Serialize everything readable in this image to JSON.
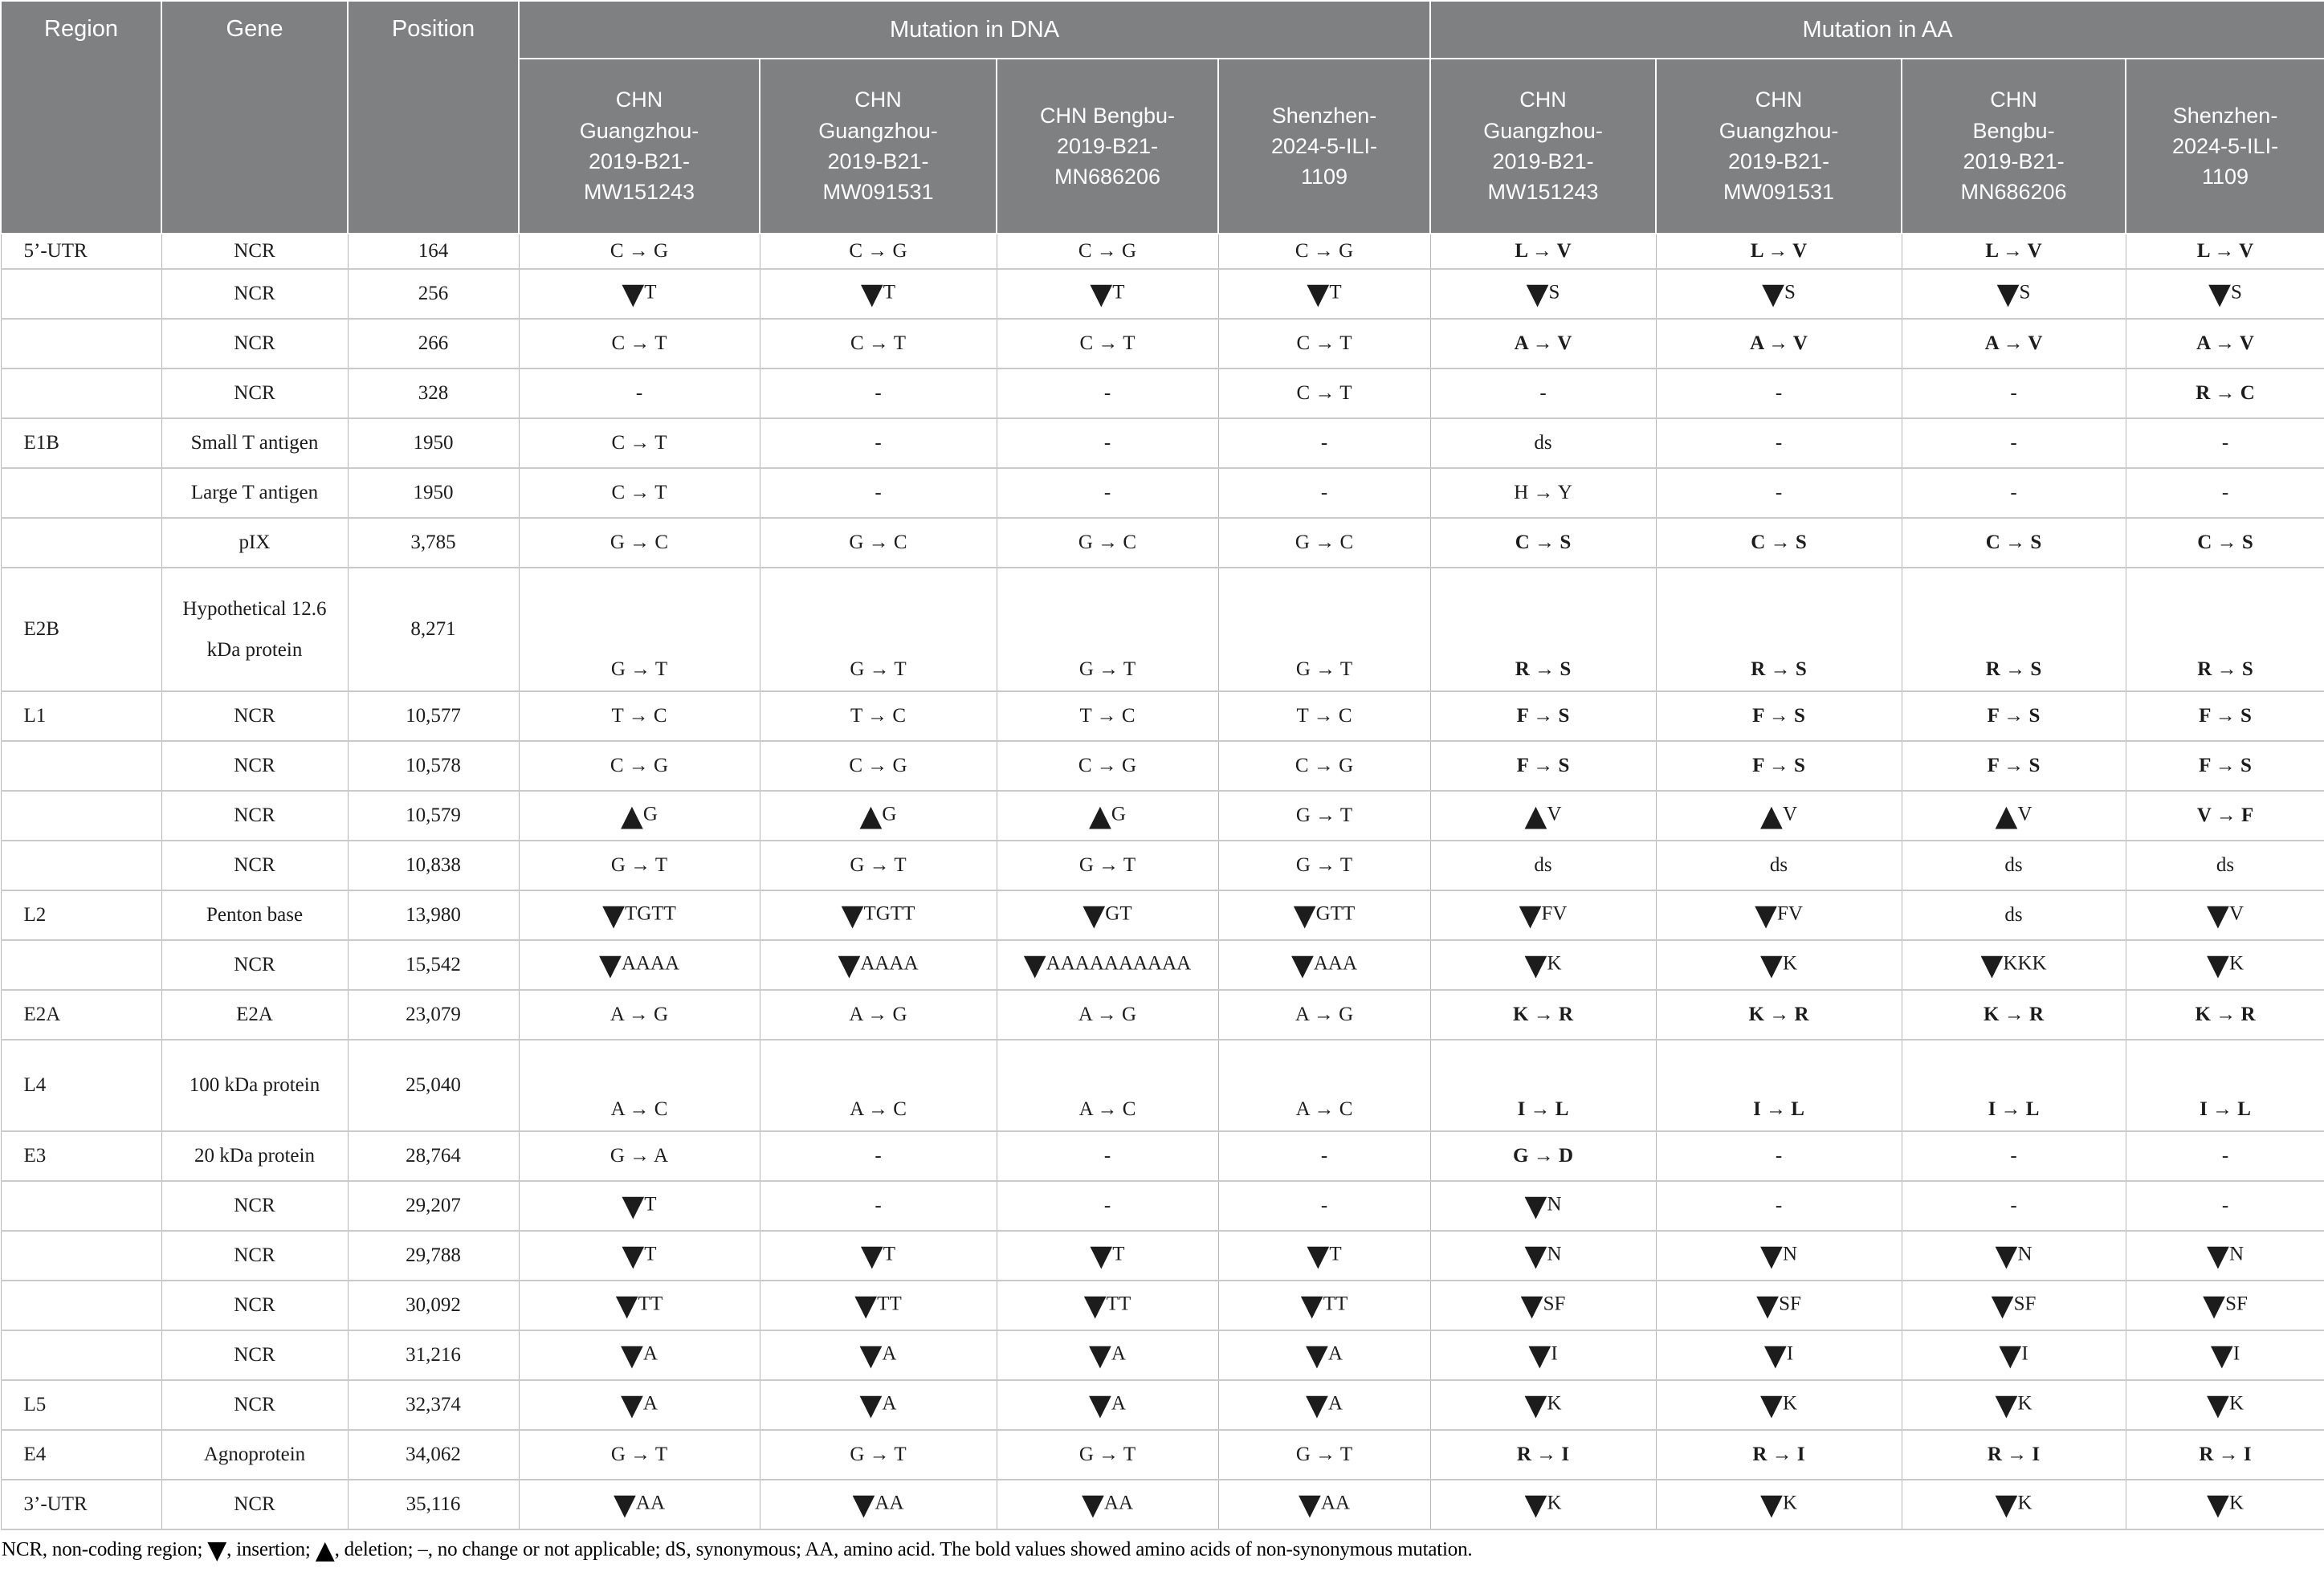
{
  "header": {
    "region": "Region",
    "gene": "Gene",
    "position": "Position",
    "groups": [
      {
        "label": "Mutation in DNA",
        "strains": [
          [
            "CHN",
            "Guangzhou-",
            "2019-B21-",
            "MW151243"
          ],
          [
            "CHN",
            "Guangzhou-",
            "2019-B21-",
            "MW091531"
          ],
          [
            "CHN Bengbu-",
            "2019-B21-",
            "MN686206"
          ],
          [
            "Shenzhen-",
            "2024-5-ILI-",
            "1109"
          ]
        ]
      },
      {
        "label": "Mutation in AA",
        "strains": [
          [
            "CHN",
            "Guangzhou-",
            "2019-B21-",
            "MW151243"
          ],
          [
            "CHN",
            "Guangzhou-",
            "2019-B21-",
            "MW091531"
          ],
          [
            "CHN",
            "Bengbu-",
            "2019-B21-",
            "MN686206"
          ],
          [
            "Shenzhen-",
            "2024-5-ILI-",
            "1109"
          ]
        ]
      }
    ]
  },
  "rows": [
    {
      "region": "5’-UTR",
      "gene": "NCR",
      "position": "164",
      "dna": [
        "C → G",
        "C → G",
        "C → G",
        "C → G"
      ],
      "aa": [
        "L → V",
        "L → V",
        "L → V",
        "L → V"
      ],
      "aa_bold": [
        1,
        1,
        1,
        1
      ]
    },
    {
      "region": "",
      "gene": "NCR",
      "position": "256",
      "dna": [
        "▼T",
        "▼T",
        "▼T",
        "▼T"
      ],
      "aa": [
        "▼S",
        "▼S",
        "▼S",
        "▼S"
      ],
      "aa_bold": [
        0,
        0,
        0,
        0
      ]
    },
    {
      "region": "",
      "gene": "NCR",
      "position": "266",
      "dna": [
        "C → T",
        "C → T",
        "C → T",
        "C → T"
      ],
      "aa": [
        "A → V",
        "A → V",
        "A → V",
        "A → V"
      ],
      "aa_bold": [
        1,
        1,
        1,
        1
      ]
    },
    {
      "region": "",
      "gene": "NCR",
      "position": "328",
      "dna": [
        "-",
        "-",
        "-",
        "C → T"
      ],
      "aa": [
        "-",
        "-",
        "-",
        "R → C"
      ],
      "aa_bold": [
        0,
        0,
        0,
        1
      ]
    },
    {
      "region": "E1B",
      "gene": "Small T antigen",
      "position": "1950",
      "dna": [
        "C → T",
        "-",
        "-",
        "-"
      ],
      "aa": [
        "ds",
        "-",
        "-",
        "-"
      ],
      "aa_bold": [
        0,
        0,
        0,
        0
      ]
    },
    {
      "region": "",
      "gene": "Large T antigen",
      "position": "1950",
      "dna": [
        "C → T",
        "-",
        "-",
        "-"
      ],
      "aa": [
        "H → Y",
        "-",
        "-",
        "-"
      ],
      "aa_bold": [
        0,
        0,
        0,
        0
      ]
    },
    {
      "region": "",
      "gene": "pIX",
      "position": "3,785",
      "dna": [
        "G → C",
        "G → C",
        "G → C",
        "G → C"
      ],
      "aa": [
        "C → S",
        "C → S",
        "C → S",
        "C → S"
      ],
      "aa_bold": [
        1,
        1,
        1,
        1
      ]
    },
    {
      "region": "E2B",
      "gene": "Hypothetical 12.6 kDa protein",
      "position": "8,271",
      "dna": [
        "G → T",
        "G → T",
        "G → T",
        "G → T"
      ],
      "aa": [
        "R → S",
        "R → S",
        "R → S",
        "R → S"
      ],
      "aa_bold": [
        1,
        1,
        1,
        1
      ]
    },
    {
      "region": "L1",
      "gene": "NCR",
      "position": "10,577",
      "dna": [
        "T → C",
        "T → C",
        "T → C",
        "T → C"
      ],
      "aa": [
        "F → S",
        "F → S",
        "F → S",
        "F → S"
      ],
      "aa_bold": [
        1,
        1,
        1,
        1
      ]
    },
    {
      "region": "",
      "gene": "NCR",
      "position": "10,578",
      "dna": [
        "C → G",
        "C → G",
        "C → G",
        "C → G"
      ],
      "aa": [
        "F → S",
        "F → S",
        "F → S",
        "F → S"
      ],
      "aa_bold": [
        1,
        1,
        1,
        1
      ]
    },
    {
      "region": "",
      "gene": "NCR",
      "position": "10,579",
      "dna": [
        "▲G",
        "▲G",
        "▲G",
        "G → T"
      ],
      "aa": [
        "▲V",
        "▲V",
        "▲V",
        "V → F"
      ],
      "aa_bold": [
        0,
        0,
        0,
        1
      ]
    },
    {
      "region": "",
      "gene": "NCR",
      "position": "10,838",
      "dna": [
        "G → T",
        "G → T",
        "G → T",
        "G → T"
      ],
      "aa": [
        "ds",
        "ds",
        "ds",
        "ds"
      ],
      "aa_bold": [
        0,
        0,
        0,
        0
      ]
    },
    {
      "region": "L2",
      "gene": "Penton base",
      "position": "13,980",
      "dna": [
        "▼TGTT",
        "▼TGTT",
        "▼GT",
        "▼GTT"
      ],
      "aa": [
        "▼FV",
        "▼FV",
        "ds",
        "▼V"
      ],
      "aa_bold": [
        0,
        0,
        0,
        0
      ]
    },
    {
      "region": "",
      "gene": "NCR",
      "position": "15,542",
      "dna": [
        "▼AAAA",
        "▼AAAA",
        "▼AAAAAAAAAA",
        "▼AAA"
      ],
      "aa": [
        "▼K",
        "▼K",
        "▼KKK",
        "▼K"
      ],
      "aa_bold": [
        0,
        0,
        0,
        0
      ]
    },
    {
      "region": "E2A",
      "gene": "E2A",
      "position": "23,079",
      "dna": [
        "A → G",
        "A → G",
        "A → G",
        "A → G"
      ],
      "aa": [
        "K → R",
        "K → R",
        "K → R",
        "K → R"
      ],
      "aa_bold": [
        1,
        1,
        1,
        1
      ]
    },
    {
      "region": "L4",
      "gene": "100 kDa protein",
      "position": "25,040",
      "dna": [
        "A → C",
        "A → C",
        "A → C",
        "A → C"
      ],
      "aa": [
        "I → L",
        "I → L",
        "I → L",
        "I → L"
      ],
      "aa_bold": [
        1,
        1,
        1,
        1
      ]
    },
    {
      "region": "E3",
      "gene": "20 kDa protein",
      "position": "28,764",
      "dna": [
        "G → A",
        "-",
        "-",
        "-"
      ],
      "aa": [
        "G → D",
        "-",
        "-",
        "-"
      ],
      "aa_bold": [
        1,
        0,
        0,
        0
      ]
    },
    {
      "region": "",
      "gene": "NCR",
      "position": "29,207",
      "dna": [
        "▼T",
        "-",
        "-",
        "-"
      ],
      "aa": [
        "▼N",
        "-",
        "-",
        "-"
      ],
      "aa_bold": [
        0,
        0,
        0,
        0
      ]
    },
    {
      "region": "",
      "gene": "NCR",
      "position": "29,788",
      "dna": [
        "▼T",
        "▼T",
        "▼T",
        "▼T"
      ],
      "aa": [
        "▼N",
        "▼N",
        "▼N",
        "▼N"
      ],
      "aa_bold": [
        0,
        0,
        0,
        0
      ]
    },
    {
      "region": "",
      "gene": "NCR",
      "position": "30,092",
      "dna": [
        "▼TT",
        "▼TT",
        "▼TT",
        "▼TT"
      ],
      "aa": [
        "▼SF",
        "▼SF",
        "▼SF",
        "▼SF"
      ],
      "aa_bold": [
        0,
        0,
        0,
        0
      ]
    },
    {
      "region": "",
      "gene": "NCR",
      "position": "31,216",
      "dna": [
        "▼A",
        "▼A",
        "▼A",
        "▼A"
      ],
      "aa": [
        "▼I",
        "▼I",
        "▼I",
        "▼I"
      ],
      "aa_bold": [
        0,
        0,
        0,
        0
      ]
    },
    {
      "region": "L5",
      "gene": "NCR",
      "position": "32,374",
      "dna": [
        "▼A",
        "▼A",
        "▼A",
        "▼A"
      ],
      "aa": [
        "▼K",
        "▼K",
        "▼K",
        "▼K"
      ],
      "aa_bold": [
        0,
        0,
        0,
        0
      ]
    },
    {
      "region": "E4",
      "gene": "Agnoprotein",
      "position": "34,062",
      "dna": [
        "G → T",
        "G → T",
        "G → T",
        "G → T"
      ],
      "aa": [
        "R → I",
        "R → I",
        "R → I",
        "R → I"
      ],
      "aa_bold": [
        1,
        1,
        1,
        1
      ]
    },
    {
      "region": "3’-UTR",
      "gene": "NCR",
      "position": "35,116",
      "dna": [
        "▼AA",
        "▼AA",
        "▼AA",
        "▼AA"
      ],
      "aa": [
        "▼K",
        "▼K",
        "▼K",
        "▼K"
      ],
      "aa_bold": [
        0,
        0,
        0,
        0
      ]
    }
  ],
  "footnote": "NCR, non-coding region; ▼, insertion; ▲, deletion; –, no change or not applicable; dS, synonymous; AA, amino acid. The bold values showed amino acids of non-synonymous mutation.",
  "colors": {
    "header_bg": "#7f8081",
    "header_text": "#ffffff",
    "body_border": "#b8b8b8"
  }
}
